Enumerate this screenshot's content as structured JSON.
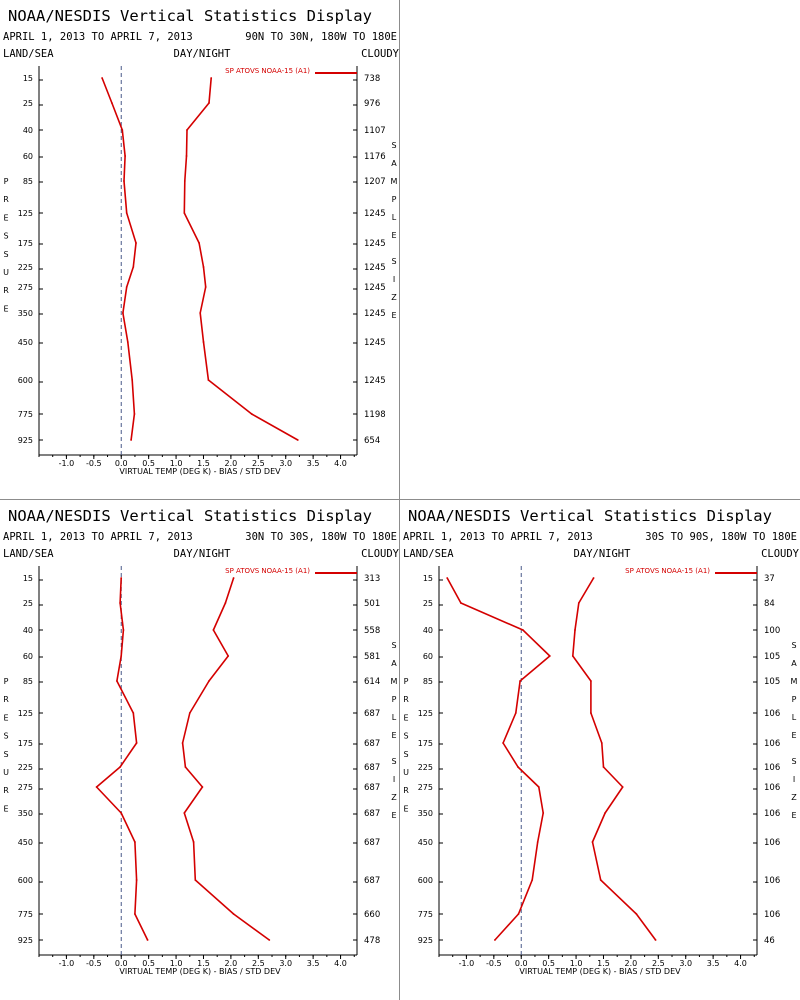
{
  "app_title": "NOAA/NESDIS Vertical Statistics Display",
  "date_range": "APRIL 1, 2013 TO APRIL 7, 2013",
  "header_labels": {
    "left": "LAND/SEA",
    "center": "DAY/NIGHT",
    "right": "CLOUDY"
  },
  "left_axis_label": "PRESSURE",
  "right_axis_label": "SAMPLE SIZE",
  "xlabel": "VIRTUAL TEMP (DEG K) - BIAS / STD DEV",
  "legend_label": "SP ATOVS NOAA-15 (A1)",
  "line_color": "#d40000",
  "pressure_levels": [
    "15",
    "25",
    "40",
    "60",
    "85",
    "125",
    "175",
    "225",
    "275",
    "350",
    "450",
    "600",
    "775",
    "925"
  ],
  "x_ticks": [
    "-1.0",
    "-0.5",
    "0.0",
    "0.5",
    "1.0",
    "1.5",
    "2.0",
    "2.5",
    "3.0",
    "3.5",
    "4.0"
  ],
  "chart_data": [
    {
      "type": "line",
      "region": "90N TO 30N, 180W TO 180E",
      "y": [
        15,
        25,
        40,
        60,
        85,
        125,
        175,
        225,
        275,
        350,
        450,
        600,
        775,
        925
      ],
      "xlim": [
        -1.5,
        4.3
      ],
      "series": [
        {
          "name": "BIAS",
          "values": [
            -0.35,
            -0.17,
            0.02,
            0.07,
            0.05,
            0.1,
            0.27,
            0.22,
            0.1,
            0.03,
            0.12,
            0.2,
            0.24,
            0.18
          ]
        },
        {
          "name": "STD DEV",
          "values": [
            1.64,
            1.6,
            1.2,
            1.19,
            1.16,
            1.15,
            1.42,
            1.5,
            1.54,
            1.44,
            1.5,
            1.59,
            2.38,
            3.22
          ]
        }
      ],
      "sample_size": [
        "738",
        "976",
        "1107",
        "1176",
        "1207",
        "1245",
        "1245",
        "1245",
        "1245",
        "1245",
        "1245",
        "1245",
        "1198",
        "654"
      ]
    },
    {
      "type": "line",
      "region": "30N TO 30S, 180W TO 180E",
      "y": [
        15,
        25,
        40,
        60,
        85,
        125,
        175,
        225,
        275,
        350,
        450,
        600,
        775,
        925
      ],
      "xlim": [
        -1.5,
        4.3
      ],
      "series": [
        {
          "name": "BIAS",
          "values": [
            0.0,
            -0.02,
            0.04,
            0.0,
            -0.08,
            0.22,
            0.28,
            -0.02,
            -0.45,
            0.0,
            0.25,
            0.28,
            0.25,
            0.48
          ]
        },
        {
          "name": "STD DEV",
          "values": [
            2.05,
            1.9,
            1.68,
            1.95,
            1.6,
            1.25,
            1.12,
            1.17,
            1.48,
            1.15,
            1.32,
            1.35,
            2.05,
            2.7
          ]
        }
      ],
      "sample_size": [
        "313",
        "501",
        "558",
        "581",
        "614",
        "687",
        "687",
        "687",
        "687",
        "687",
        "687",
        "687",
        "660",
        "478"
      ]
    },
    {
      "type": "line",
      "region": "30S TO 90S, 180W TO 180E",
      "y": [
        15,
        25,
        40,
        60,
        85,
        125,
        175,
        225,
        275,
        350,
        450,
        600,
        775,
        925
      ],
      "xlim": [
        -1.5,
        4.3
      ],
      "series": [
        {
          "name": "BIAS",
          "values": [
            -1.35,
            -1.1,
            0.03,
            0.52,
            -0.02,
            -0.1,
            -0.33,
            -0.06,
            0.32,
            0.4,
            0.3,
            0.2,
            -0.05,
            -0.48
          ]
        },
        {
          "name": "STD DEV",
          "values": [
            1.32,
            1.05,
            0.98,
            0.94,
            1.27,
            1.27,
            1.47,
            1.5,
            1.85,
            1.53,
            1.3,
            1.45,
            2.1,
            2.45
          ]
        }
      ],
      "sample_size": [
        "37",
        "84",
        "100",
        "105",
        "105",
        "106",
        "106",
        "106",
        "106",
        "106",
        "106",
        "106",
        "106",
        "46"
      ]
    }
  ]
}
